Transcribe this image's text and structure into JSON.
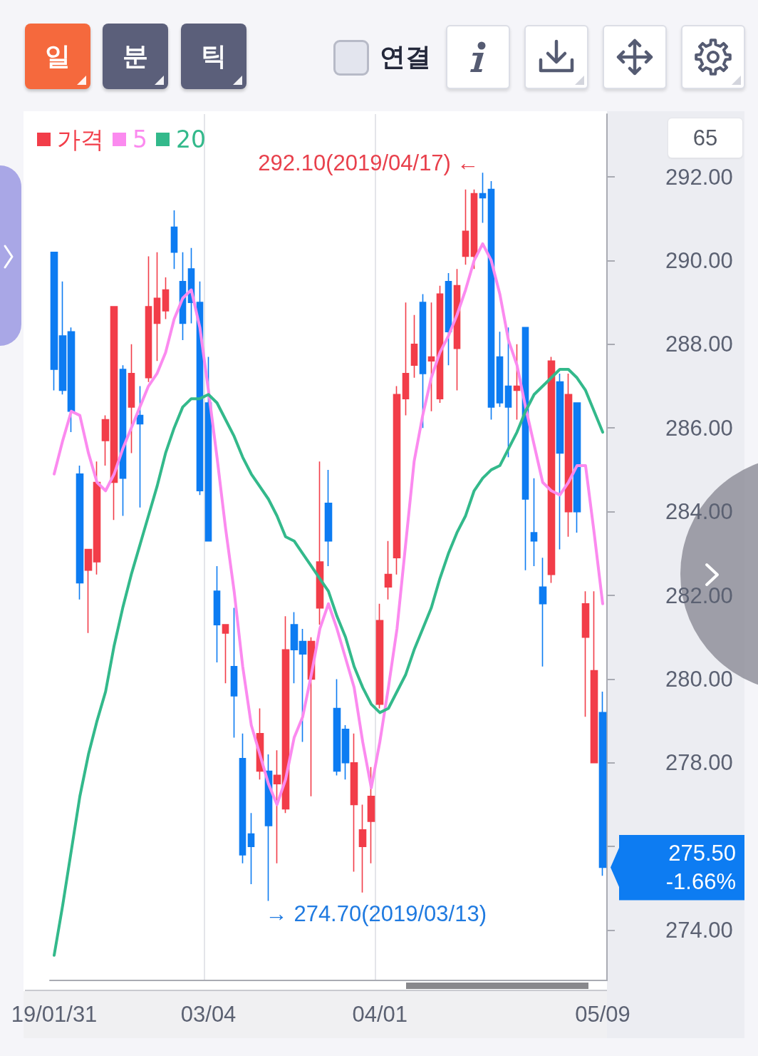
{
  "chart_data": {
    "type": "candlestick",
    "categories": [
      "19/01/31",
      null,
      null,
      null,
      null,
      null,
      null,
      null,
      null,
      null,
      null,
      null,
      null,
      null,
      null,
      null,
      null,
      null,
      "03/04",
      null,
      null,
      null,
      null,
      null,
      null,
      null,
      null,
      null,
      null,
      null,
      null,
      null,
      null,
      null,
      null,
      null,
      null,
      null,
      "04/01",
      null,
      null,
      null,
      null,
      null,
      null,
      null,
      null,
      null,
      null,
      null,
      null,
      null,
      null,
      null,
      null,
      null,
      null,
      null,
      null,
      null,
      null,
      null,
      null,
      null,
      "05/09"
    ],
    "series": [
      {
        "name": "가격",
        "color": "#f23d49",
        "ohlc": [
          [
            290.2,
            290.2,
            286.9,
            287.4
          ],
          [
            288.2,
            289.5,
            286.8,
            286.9
          ],
          [
            288.3,
            288.4,
            285.9,
            286.4
          ],
          [
            284.9,
            285.1,
            281.9,
            282.3
          ],
          [
            282.6,
            283.1,
            281.1,
            283.1
          ],
          [
            282.8,
            285.2,
            282.5,
            284.7
          ],
          [
            285.7,
            286.3,
            285.1,
            286.2
          ],
          [
            284.7,
            288.9,
            283.8,
            288.9
          ],
          [
            287.4,
            287.5,
            283.9,
            284.8
          ],
          [
            286.5,
            288.0,
            285.4,
            287.3
          ],
          [
            286.3,
            287.0,
            284.1,
            286.1
          ],
          [
            287.2,
            290.1,
            287.1,
            288.9
          ],
          [
            288.5,
            290.2,
            287.6,
            289.1
          ],
          [
            288.8,
            289.6,
            288.6,
            289.3
          ],
          [
            290.8,
            291.2,
            289.8,
            290.2
          ],
          [
            289.5,
            290.2,
            288.1,
            288.5
          ],
          [
            289.8,
            290.3,
            288.5,
            289.0
          ],
          [
            289.0,
            289.5,
            284.4,
            284.5
          ],
          [
            286.6,
            287.7,
            283.3,
            283.3
          ],
          [
            282.1,
            282.7,
            280.4,
            281.3
          ],
          [
            281.1,
            281.3,
            279.9,
            281.3
          ],
          [
            280.3,
            281.7,
            278.6,
            279.6
          ],
          [
            278.1,
            278.7,
            275.6,
            275.8
          ],
          [
            276.3,
            276.8,
            275.1,
            276.0
          ],
          [
            277.8,
            279.3,
            277.6,
            278.7
          ],
          [
            277.8,
            278.2,
            274.7,
            276.5
          ],
          [
            277.5,
            278.3,
            275.6,
            277.7
          ],
          [
            276.9,
            281.5,
            276.8,
            280.7
          ],
          [
            281.3,
            281.6,
            279.9,
            280.7
          ],
          [
            280.9,
            281.2,
            278.5,
            280.6
          ],
          [
            280.0,
            281.0,
            277.2,
            280.9
          ],
          [
            281.7,
            285.2,
            281.3,
            282.8
          ],
          [
            284.2,
            285.0,
            282.7,
            283.3
          ],
          [
            279.3,
            280.0,
            277.7,
            277.8
          ],
          [
            278.8,
            278.9,
            277.6,
            278.0
          ],
          [
            277.0,
            278.7,
            275.4,
            278.0
          ],
          [
            276.0,
            277.0,
            274.9,
            276.4
          ],
          [
            276.6,
            277.9,
            275.6,
            277.2
          ],
          [
            279.4,
            281.8,
            279.3,
            281.4
          ],
          [
            282.2,
            283.3,
            281.9,
            282.5
          ],
          [
            282.9,
            287.0,
            282.5,
            286.8
          ],
          [
            286.7,
            289.0,
            286.3,
            287.3
          ],
          [
            287.5,
            288.7,
            287.2,
            288.0
          ],
          [
            289.0,
            289.2,
            286.0,
            287.3
          ],
          [
            287.6,
            289.0,
            286.4,
            287.7
          ],
          [
            286.7,
            289.4,
            286.6,
            289.2
          ],
          [
            289.5,
            289.7,
            287.5,
            288.3
          ],
          [
            287.9,
            289.8,
            286.9,
            289.4
          ],
          [
            290.1,
            291.7,
            289.9,
            290.7
          ],
          [
            290.1,
            291.7,
            289.8,
            291.6
          ],
          [
            291.6,
            292.1,
            290.9,
            291.5
          ],
          [
            291.7,
            291.9,
            286.2,
            286.5
          ],
          [
            287.7,
            288.3,
            286.5,
            286.6
          ],
          [
            287.0,
            288.4,
            285.3,
            286.5
          ],
          [
            286.9,
            288.0,
            286.2,
            287.0
          ],
          [
            288.4,
            288.4,
            282.6,
            284.3
          ],
          [
            283.5,
            284.8,
            282.7,
            283.3
          ],
          [
            282.2,
            282.9,
            280.3,
            281.8
          ],
          [
            282.5,
            287.7,
            282.3,
            287.6
          ],
          [
            287.1,
            287.3,
            283.1,
            285.4
          ],
          [
            284.0,
            287.3,
            283.4,
            286.8
          ],
          [
            286.6,
            286.6,
            283.5,
            284.0
          ],
          [
            281.0,
            282.1,
            279.1,
            281.8
          ],
          [
            278.0,
            282.1,
            278.0,
            280.2
          ],
          [
            279.2,
            279.7,
            275.3,
            275.5
          ]
        ],
        "colors": [
          "#0d7cf2",
          "#0d7cf2",
          "#0d7cf2",
          "#0d7cf2",
          "#f23d49",
          "#f23d49",
          "#f23d49",
          "#f23d49",
          "#0d7cf2",
          "#f23d49",
          "#0d7cf2",
          "#f23d49",
          "#f23d49",
          "#f23d49",
          "#0d7cf2",
          "#0d7cf2",
          "#0d7cf2",
          "#0d7cf2",
          "#0d7cf2",
          "#0d7cf2",
          "#f23d49",
          "#0d7cf2",
          "#0d7cf2",
          "#0d7cf2",
          "#f23d49",
          "#0d7cf2",
          "#f23d49",
          "#f23d49",
          "#0d7cf2",
          "#0d7cf2",
          "#f23d49",
          "#f23d49",
          "#0d7cf2",
          "#0d7cf2",
          "#0d7cf2",
          "#f23d49",
          "#f23d49",
          "#f23d49",
          "#f23d49",
          "#f23d49",
          "#f23d49",
          "#f23d49",
          "#f23d49",
          "#0d7cf2",
          "#f23d49",
          "#f23d49",
          "#0d7cf2",
          "#f23d49",
          "#f23d49",
          "#f23d49",
          "#0d7cf2",
          "#0d7cf2",
          "#0d7cf2",
          "#0d7cf2",
          "#f23d49",
          "#0d7cf2",
          "#0d7cf2",
          "#0d7cf2",
          "#f23d49",
          "#0d7cf2",
          "#f23d49",
          "#0d7cf2",
          "#f23d49",
          "#f23d49",
          "#0d7cf2"
        ]
      },
      {
        "name": "5",
        "type": "line",
        "color": "#fb8aef",
        "values": [
          284.9,
          285.7,
          286.4,
          286.3,
          285.4,
          284.7,
          284.5,
          284.9,
          285.5,
          286.0,
          286.5,
          287.0,
          287.3,
          287.8,
          288.6,
          289.1,
          289.3,
          288.4,
          286.9,
          285.3,
          283.6,
          282.1,
          280.3,
          278.9,
          278.2,
          277.5,
          277.0,
          277.6,
          278.6,
          279.1,
          280.1,
          281.2,
          281.8,
          281.2,
          280.5,
          279.8,
          278.5,
          277.4,
          278.5,
          279.8,
          281.2,
          283.2,
          285.2,
          286.3,
          287.2,
          287.8,
          288.2,
          288.7,
          289.3,
          290.0,
          290.4,
          290.0,
          289.2,
          288.1,
          287.5,
          286.5,
          285.6,
          284.7,
          284.5,
          284.4,
          284.7,
          285.1,
          285.1,
          283.5,
          281.8
        ]
      },
      {
        "name": "20",
        "type": "line",
        "color": "#33b98b",
        "values": [
          273.4,
          274.6,
          275.9,
          277.2,
          278.2,
          279.0,
          279.7,
          280.8,
          281.7,
          282.5,
          283.2,
          283.9,
          284.6,
          285.4,
          286.0,
          286.5,
          286.7,
          286.7,
          286.8,
          286.6,
          286.2,
          285.8,
          285.3,
          284.9,
          284.6,
          284.3,
          283.9,
          283.4,
          283.3,
          283.0,
          282.7,
          282.4,
          282.1,
          281.5,
          281.0,
          280.3,
          279.8,
          279.4,
          279.2,
          279.3,
          279.7,
          280.1,
          280.7,
          281.2,
          281.7,
          282.4,
          283.0,
          283.5,
          283.9,
          284.5,
          284.8,
          285.0,
          285.1,
          285.5,
          285.9,
          286.4,
          286.8,
          287.0,
          287.2,
          287.4,
          287.4,
          287.2,
          286.9,
          286.4,
          285.9
        ]
      }
    ],
    "ylim": [
      272.8,
      293.5
    ],
    "yticks": [
      {
        "value": 274,
        "label": "274.00"
      },
      {
        "value": 276,
        "label": null
      },
      {
        "value": 278,
        "label": "278.00"
      },
      {
        "value": 280,
        "label": "280.00"
      },
      {
        "value": 282,
        "label": "282.00"
      },
      {
        "value": 284,
        "label": "284.00"
      },
      {
        "value": 286,
        "label": "286.00"
      },
      {
        "value": 288,
        "label": "288.00"
      },
      {
        "value": 290,
        "label": "290.00"
      },
      {
        "value": 292,
        "label": "292.00"
      }
    ],
    "grid": "x",
    "legend": "top left",
    "annotations": [
      "일",
      "분",
      "틱",
      "연결",
      "65",
      "292.10(2019/04/17) ←",
      "→ 274.70(2019/03/13)",
      "275.50\n-1.66%"
    ]
  }
}
